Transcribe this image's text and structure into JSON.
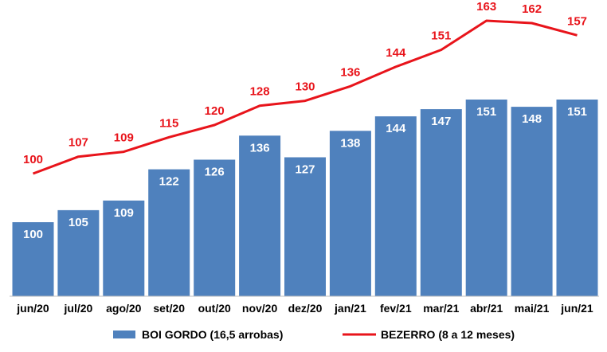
{
  "chart_data": {
    "type": "bar",
    "categories": [
      "jun/20",
      "jul/20",
      "ago/20",
      "set/20",
      "out/20",
      "nov/20",
      "dez/20",
      "jan/21",
      "fev/21",
      "mar/21",
      "abr/21",
      "mai/21",
      "jun/21"
    ],
    "series": [
      {
        "name": "BOI GORDO (16,5 arrobas)",
        "type": "bar",
        "color": "#4f81bd",
        "values": [
          100,
          105,
          109,
          122,
          126,
          136,
          127,
          138,
          144,
          147,
          151,
          148,
          151
        ]
      },
      {
        "name": "BEZERRO (8 a 12 meses)",
        "type": "line",
        "color": "#e8141b",
        "values": [
          100,
          107,
          109,
          115,
          120,
          128,
          130,
          136,
          144,
          151,
          163,
          162,
          157
        ]
      }
    ],
    "title": "",
    "xlabel": "",
    "ylabel": "",
    "ylim": [
      70,
      170
    ],
    "grid": false,
    "legend": "bottom"
  }
}
